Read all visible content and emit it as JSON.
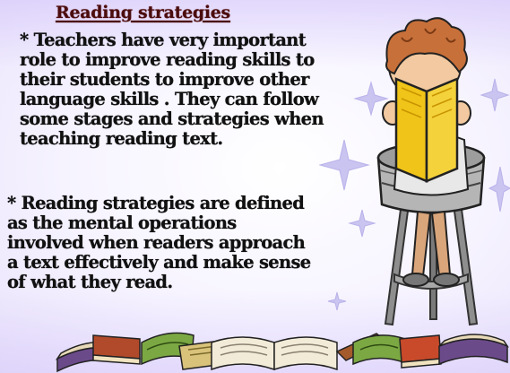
{
  "slide": {
    "title": "Reading strategies ",
    "paragraph1": {
      "lines": [
        "* Teachers  have very important",
        "role to improve reading skills to",
        "their students to improve other",
        "language skills . They can follow",
        "some stages and  strategies when",
        "teaching reading text."
      ]
    },
    "paragraph2": {
      "lines": [
        "* Reading strategies are defined",
        "as the mental operations",
        "involved when readers approach",
        "a text effectively and make sense",
        "of what they read."
      ]
    }
  },
  "colors": {
    "title": "#4a0d0d",
    "body_text": "#111111",
    "book_cover": "#f0c418",
    "hair": "#c8703a",
    "stool": "#8a8a8a",
    "stars": "#c9c4f0"
  },
  "icons": {
    "illustration": "child-reading-book-on-stool-clipart",
    "footer": "row-of-books-clipart"
  }
}
